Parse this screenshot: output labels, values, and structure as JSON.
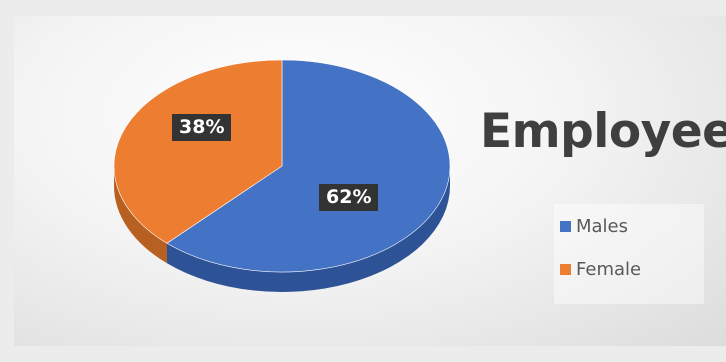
{
  "chart_data": {
    "type": "pie",
    "title": "Employees",
    "slices": [
      {
        "label": "Males",
        "value": 62,
        "display": "62%",
        "color": "#4472C4",
        "side_color": "#2E5296"
      },
      {
        "label": "Female",
        "value": 38,
        "display": "38%",
        "color": "#ED7D31",
        "side_color": "#B85F22"
      }
    ],
    "legend": {
      "placement": "right",
      "entries": [
        "Males",
        "Female"
      ]
    },
    "style": "3d"
  }
}
